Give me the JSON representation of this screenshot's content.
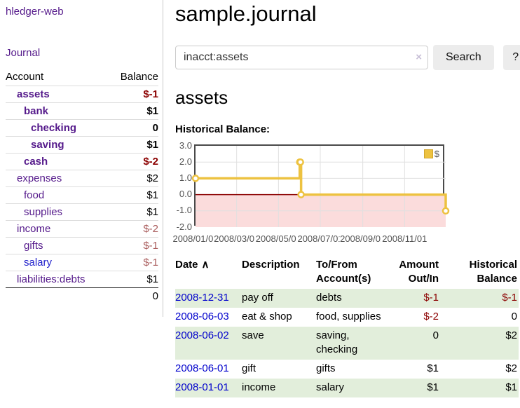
{
  "sidebar": {
    "brand": "hledger-web",
    "nav": {
      "journal": "Journal"
    },
    "table_headers": {
      "account": "Account",
      "balance": "Balance"
    },
    "accounts": [
      {
        "name": "assets",
        "balance": "$-1",
        "depth": 1,
        "bold": true,
        "balance_class": "neg-strong"
      },
      {
        "name": "bank",
        "balance": "$1",
        "depth": 2,
        "bold": true,
        "balance_class": ""
      },
      {
        "name": "checking",
        "balance": "0",
        "depth": 3,
        "bold": true,
        "balance_class": ""
      },
      {
        "name": "saving",
        "balance": "$1",
        "depth": 3,
        "bold": true,
        "balance_class": ""
      },
      {
        "name": "cash",
        "balance": "$-2",
        "depth": 2,
        "bold": true,
        "balance_class": "neg-strong"
      },
      {
        "name": "expenses",
        "balance": "$2",
        "depth": 1,
        "bold": false,
        "balance_class": ""
      },
      {
        "name": "food",
        "balance": "$1",
        "depth": 2,
        "bold": false,
        "balance_class": ""
      },
      {
        "name": "supplies",
        "balance": "$1",
        "depth": 2,
        "bold": false,
        "balance_class": ""
      },
      {
        "name": "income",
        "balance": "$-2",
        "depth": 1,
        "bold": false,
        "balance_class": "neg-soft"
      },
      {
        "name": "gifts",
        "balance": "$-1",
        "depth": 2,
        "bold": false,
        "balance_class": "neg-soft"
      },
      {
        "name": "salary",
        "balance": "$-1",
        "depth": 2,
        "bold": false,
        "balance_class": "neg-soft",
        "name_class": "blue"
      },
      {
        "name": "liabilities:debts",
        "balance": "$1",
        "depth": 1,
        "bold": false,
        "balance_class": ""
      }
    ],
    "total": "0"
  },
  "main": {
    "title": "sample.journal",
    "search": {
      "value": "inacct:assets",
      "clear_icon": "×",
      "search_button": "Search",
      "help_button": "?"
    },
    "account_heading": "assets",
    "chart_title": "Historical Balance:"
  },
  "chart_data": {
    "type": "line",
    "step": true,
    "title": "Historical Balance of assets",
    "legend": [
      {
        "label": "$",
        "color": "#edc240"
      }
    ],
    "x": [
      "2008-01-01",
      "2008-06-01",
      "2008-06-02",
      "2008-06-03",
      "2008-12-31"
    ],
    "x_days": [
      0,
      152,
      153,
      154,
      365
    ],
    "x_range_days": [
      0,
      365
    ],
    "series": [
      {
        "name": "$",
        "values": [
          1,
          2,
          2,
          0,
          -1
        ]
      }
    ],
    "ylim": [
      -2,
      3
    ],
    "yticks": [
      {
        "label": "3.0",
        "value": 3
      },
      {
        "label": "2.0",
        "value": 2
      },
      {
        "label": "1.0",
        "value": 1
      },
      {
        "label": "0.0",
        "value": 0
      },
      {
        "label": "-1.0",
        "value": -1
      },
      {
        "label": "-2.0",
        "value": -2
      }
    ],
    "xticks": [
      {
        "label": "2008/01/01",
        "day": 0
      },
      {
        "label": "2008/03/01",
        "day": 60
      },
      {
        "label": "2008/05/01",
        "day": 121
      },
      {
        "label": "2008/07/01",
        "day": 182
      },
      {
        "label": "2008/09/01",
        "day": 244
      },
      {
        "label": "2008/11/01",
        "day": 305
      }
    ],
    "grid": true,
    "legend_position": "top-right",
    "colors": {
      "line": "#edc240",
      "point_fill": "#ffffff",
      "negative_region": "#fbdcdc",
      "zero_line": "#8b0000",
      "gridline": "#e0e0e0",
      "border": "#4a4a4a"
    }
  },
  "register": {
    "headers": {
      "date": "Date",
      "sort_icon": "∧",
      "description": "Description",
      "accounts": "To/From Account(s)",
      "amount": "Amount Out/In",
      "balance": "Historical Balance"
    },
    "rows": [
      {
        "date": "2008-12-31",
        "description": "pay off",
        "accounts": "debts",
        "amount": "$-1",
        "balance": "$-1",
        "amount_neg": true,
        "balance_neg": true
      },
      {
        "date": "2008-06-03",
        "description": "eat & shop",
        "accounts": "food, supplies",
        "amount": "$-2",
        "balance": "0",
        "amount_neg": true,
        "balance_neg": false
      },
      {
        "date": "2008-06-02",
        "description": "save",
        "accounts": "saving, checking",
        "amount": "0",
        "balance": "$2",
        "amount_neg": false,
        "balance_neg": false
      },
      {
        "date": "2008-06-01",
        "description": "gift",
        "accounts": "gifts",
        "amount": "$1",
        "balance": "$2",
        "amount_neg": false,
        "balance_neg": false
      },
      {
        "date": "2008-01-01",
        "description": "income",
        "accounts": "salary",
        "amount": "$1",
        "balance": "$1",
        "amount_neg": false,
        "balance_neg": false
      }
    ]
  }
}
